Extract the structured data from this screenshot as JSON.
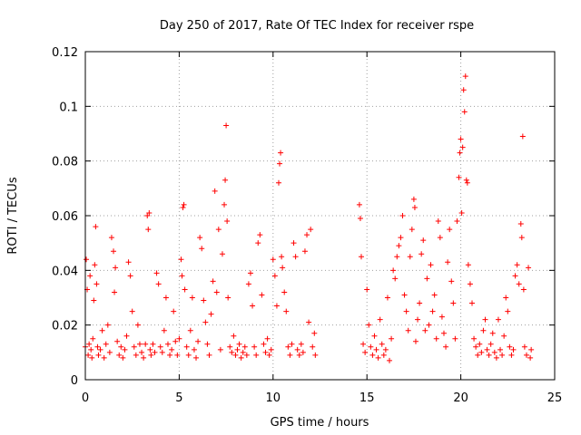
{
  "chart_data": {
    "type": "scatter",
    "title": "Day 250 of 2017, Rate Of TEC Index for receiver rspe",
    "xlabel": "GPS time / hours",
    "ylabel": "ROTI / TECUs",
    "xlim": [
      0,
      25
    ],
    "ylim": [
      0,
      0.12
    ],
    "xticks": [
      "0",
      "5",
      "10",
      "15",
      "20",
      "25"
    ],
    "yticks": [
      "0",
      "0.02",
      "0.04",
      "0.06",
      "0.08",
      "0.1",
      "0.12"
    ],
    "grid": true,
    "marker": "plus",
    "color": "#ff0000",
    "series": [
      {
        "points": [
          [
            0.0,
            0.012
          ],
          [
            0.05,
            0.044
          ],
          [
            0.1,
            0.033
          ],
          [
            0.15,
            0.009
          ],
          [
            0.2,
            0.013
          ],
          [
            0.25,
            0.038
          ],
          [
            0.3,
            0.011
          ],
          [
            0.35,
            0.008
          ],
          [
            0.4,
            0.015
          ],
          [
            0.45,
            0.029
          ],
          [
            0.5,
            0.042
          ],
          [
            0.55,
            0.056
          ],
          [
            0.6,
            0.035
          ],
          [
            0.65,
            0.012
          ],
          [
            0.7,
            0.009
          ],
          [
            0.8,
            0.011
          ],
          [
            0.9,
            0.018
          ],
          [
            1.0,
            0.008
          ],
          [
            1.1,
            0.013
          ],
          [
            1.2,
            0.02
          ],
          [
            1.3,
            0.01
          ],
          [
            1.4,
            0.052
          ],
          [
            1.5,
            0.047
          ],
          [
            1.55,
            0.032
          ],
          [
            1.6,
            0.041
          ],
          [
            1.7,
            0.014
          ],
          [
            1.8,
            0.009
          ],
          [
            1.9,
            0.012
          ],
          [
            2.0,
            0.008
          ],
          [
            2.1,
            0.011
          ],
          [
            2.2,
            0.016
          ],
          [
            2.3,
            0.043
          ],
          [
            2.4,
            0.038
          ],
          [
            2.5,
            0.025
          ],
          [
            2.6,
            0.012
          ],
          [
            2.7,
            0.009
          ],
          [
            2.8,
            0.02
          ],
          [
            2.9,
            0.013
          ],
          [
            3.0,
            0.01
          ],
          [
            3.1,
            0.008
          ],
          [
            3.2,
            0.013
          ],
          [
            3.3,
            0.06
          ],
          [
            3.35,
            0.055
          ],
          [
            3.4,
            0.061
          ],
          [
            3.45,
            0.011
          ],
          [
            3.5,
            0.009
          ],
          [
            3.6,
            0.013
          ],
          [
            3.7,
            0.01
          ],
          [
            3.8,
            0.039
          ],
          [
            3.9,
            0.035
          ],
          [
            4.0,
            0.012
          ],
          [
            4.1,
            0.01
          ],
          [
            4.2,
            0.018
          ],
          [
            4.3,
            0.03
          ],
          [
            4.4,
            0.013
          ],
          [
            4.5,
            0.009
          ],
          [
            4.6,
            0.011
          ],
          [
            4.7,
            0.025
          ],
          [
            4.8,
            0.014
          ],
          [
            4.9,
            0.009
          ],
          [
            5.0,
            0.015
          ],
          [
            5.1,
            0.044
          ],
          [
            5.15,
            0.038
          ],
          [
            5.2,
            0.063
          ],
          [
            5.25,
            0.064
          ],
          [
            5.3,
            0.033
          ],
          [
            5.4,
            0.012
          ],
          [
            5.5,
            0.009
          ],
          [
            5.6,
            0.018
          ],
          [
            5.7,
            0.03
          ],
          [
            5.8,
            0.011
          ],
          [
            5.9,
            0.008
          ],
          [
            6.0,
            0.014
          ],
          [
            6.1,
            0.052
          ],
          [
            6.2,
            0.048
          ],
          [
            6.3,
            0.029
          ],
          [
            6.4,
            0.021
          ],
          [
            6.5,
            0.013
          ],
          [
            6.6,
            0.009
          ],
          [
            6.7,
            0.024
          ],
          [
            6.8,
            0.036
          ],
          [
            6.9,
            0.069
          ],
          [
            7.0,
            0.032
          ],
          [
            7.1,
            0.055
          ],
          [
            7.2,
            0.011
          ],
          [
            7.3,
            0.046
          ],
          [
            7.4,
            0.064
          ],
          [
            7.45,
            0.073
          ],
          [
            7.5,
            0.093
          ],
          [
            7.55,
            0.058
          ],
          [
            7.6,
            0.03
          ],
          [
            7.7,
            0.012
          ],
          [
            7.8,
            0.01
          ],
          [
            7.9,
            0.016
          ],
          [
            8.0,
            0.009
          ],
          [
            8.1,
            0.011
          ],
          [
            8.2,
            0.013
          ],
          [
            8.3,
            0.008
          ],
          [
            8.4,
            0.01
          ],
          [
            8.5,
            0.012
          ],
          [
            8.6,
            0.009
          ],
          [
            8.7,
            0.035
          ],
          [
            8.8,
            0.039
          ],
          [
            8.9,
            0.027
          ],
          [
            9.0,
            0.012
          ],
          [
            9.1,
            0.009
          ],
          [
            9.2,
            0.05
          ],
          [
            9.3,
            0.053
          ],
          [
            9.4,
            0.031
          ],
          [
            9.5,
            0.013
          ],
          [
            9.6,
            0.01
          ],
          [
            9.7,
            0.015
          ],
          [
            9.8,
            0.009
          ],
          [
            9.9,
            0.011
          ],
          [
            10.0,
            0.044
          ],
          [
            10.1,
            0.038
          ],
          [
            10.2,
            0.027
          ],
          [
            10.3,
            0.072
          ],
          [
            10.35,
            0.079
          ],
          [
            10.4,
            0.083
          ],
          [
            10.45,
            0.045
          ],
          [
            10.5,
            0.041
          ],
          [
            10.6,
            0.032
          ],
          [
            10.7,
            0.025
          ],
          [
            10.8,
            0.012
          ],
          [
            10.9,
            0.009
          ],
          [
            11.0,
            0.013
          ],
          [
            11.1,
            0.05
          ],
          [
            11.2,
            0.045
          ],
          [
            11.3,
            0.011
          ],
          [
            11.4,
            0.009
          ],
          [
            11.5,
            0.013
          ],
          [
            11.6,
            0.01
          ],
          [
            11.7,
            0.047
          ],
          [
            11.8,
            0.053
          ],
          [
            11.9,
            0.021
          ],
          [
            12.0,
            0.055
          ],
          [
            12.1,
            0.012
          ],
          [
            12.2,
            0.017
          ],
          [
            12.25,
            0.009
          ],
          [
            14.6,
            0.064
          ],
          [
            14.65,
            0.059
          ],
          [
            14.7,
            0.045
          ],
          [
            14.8,
            0.013
          ],
          [
            14.9,
            0.01
          ],
          [
            15.0,
            0.033
          ],
          [
            15.1,
            0.02
          ],
          [
            15.2,
            0.012
          ],
          [
            15.3,
            0.009
          ],
          [
            15.4,
            0.016
          ],
          [
            15.5,
            0.011
          ],
          [
            15.6,
            0.008
          ],
          [
            15.7,
            0.022
          ],
          [
            15.8,
            0.013
          ],
          [
            15.9,
            0.009
          ],
          [
            16.0,
            0.011
          ],
          [
            16.1,
            0.03
          ],
          [
            16.2,
            0.007
          ],
          [
            16.3,
            0.015
          ],
          [
            16.4,
            0.04
          ],
          [
            16.5,
            0.037
          ],
          [
            16.6,
            0.045
          ],
          [
            16.7,
            0.049
          ],
          [
            16.8,
            0.052
          ],
          [
            16.9,
            0.06
          ],
          [
            17.0,
            0.031
          ],
          [
            17.1,
            0.025
          ],
          [
            17.2,
            0.018
          ],
          [
            17.3,
            0.045
          ],
          [
            17.4,
            0.055
          ],
          [
            17.5,
            0.066
          ],
          [
            17.55,
            0.063
          ],
          [
            17.6,
            0.014
          ],
          [
            17.7,
            0.022
          ],
          [
            17.8,
            0.028
          ],
          [
            17.9,
            0.046
          ],
          [
            18.0,
            0.051
          ],
          [
            18.1,
            0.018
          ],
          [
            18.2,
            0.037
          ],
          [
            18.3,
            0.02
          ],
          [
            18.4,
            0.042
          ],
          [
            18.5,
            0.025
          ],
          [
            18.6,
            0.031
          ],
          [
            18.7,
            0.015
          ],
          [
            18.8,
            0.058
          ],
          [
            18.9,
            0.052
          ],
          [
            19.0,
            0.023
          ],
          [
            19.1,
            0.017
          ],
          [
            19.2,
            0.012
          ],
          [
            19.3,
            0.043
          ],
          [
            19.4,
            0.055
          ],
          [
            19.5,
            0.036
          ],
          [
            19.6,
            0.028
          ],
          [
            19.7,
            0.015
          ],
          [
            19.8,
            0.058
          ],
          [
            19.9,
            0.074
          ],
          [
            19.95,
            0.083
          ],
          [
            20.0,
            0.088
          ],
          [
            20.05,
            0.061
          ],
          [
            20.1,
            0.085
          ],
          [
            20.15,
            0.106
          ],
          [
            20.2,
            0.098
          ],
          [
            20.25,
            0.111
          ],
          [
            20.3,
            0.073
          ],
          [
            20.35,
            0.072
          ],
          [
            20.4,
            0.042
          ],
          [
            20.5,
            0.035
          ],
          [
            20.6,
            0.028
          ],
          [
            20.7,
            0.015
          ],
          [
            20.8,
            0.012
          ],
          [
            20.9,
            0.009
          ],
          [
            21.0,
            0.013
          ],
          [
            21.1,
            0.01
          ],
          [
            21.2,
            0.018
          ],
          [
            21.3,
            0.022
          ],
          [
            21.4,
            0.011
          ],
          [
            21.5,
            0.009
          ],
          [
            21.6,
            0.013
          ],
          [
            21.7,
            0.017
          ],
          [
            21.8,
            0.01
          ],
          [
            21.9,
            0.008
          ],
          [
            22.0,
            0.022
          ],
          [
            22.1,
            0.011
          ],
          [
            22.2,
            0.009
          ],
          [
            22.3,
            0.016
          ],
          [
            22.4,
            0.03
          ],
          [
            22.5,
            0.025
          ],
          [
            22.6,
            0.012
          ],
          [
            22.7,
            0.009
          ],
          [
            22.8,
            0.011
          ],
          [
            22.9,
            0.038
          ],
          [
            23.0,
            0.042
          ],
          [
            23.1,
            0.035
          ],
          [
            23.2,
            0.057
          ],
          [
            23.25,
            0.052
          ],
          [
            23.3,
            0.089
          ],
          [
            23.35,
            0.033
          ],
          [
            23.4,
            0.012
          ],
          [
            23.5,
            0.009
          ],
          [
            23.6,
            0.041
          ],
          [
            23.7,
            0.008
          ],
          [
            23.75,
            0.011
          ]
        ]
      }
    ]
  }
}
